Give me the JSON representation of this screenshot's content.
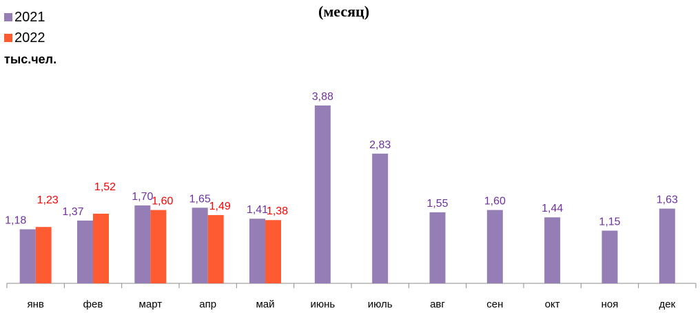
{
  "chart_data": {
    "type": "bar",
    "title": "(месяц)",
    "unit_label": "тыс.чел.",
    "categories": [
      "янв",
      "фев",
      "март",
      "апр",
      "май",
      "июнь",
      "июль",
      "авг",
      "сен",
      "окт",
      "ноя",
      "дек"
    ],
    "series": [
      {
        "name": "2021",
        "color": "#957DB5",
        "label_color": "#7030A0",
        "values": [
          1.18,
          1.37,
          1.7,
          1.65,
          1.41,
          3.88,
          2.83,
          1.55,
          1.6,
          1.44,
          1.15,
          1.63
        ],
        "labels": [
          "1,18",
          "1,37",
          "1,70",
          "1,65",
          "1,41",
          "3,88",
          "2,83",
          "1,55",
          "1,60",
          "1,44",
          "1,15",
          "1,63"
        ]
      },
      {
        "name": "2022",
        "color": "#FF5B32",
        "label_color": "#FF0000",
        "values": [
          1.23,
          1.52,
          1.6,
          1.49,
          1.38,
          null,
          null,
          null,
          null,
          null,
          null,
          null
        ],
        "labels": [
          "1,23",
          "1,52",
          "1,60",
          "1,49",
          "1,38",
          null,
          null,
          null,
          null,
          null,
          null,
          null
        ]
      }
    ],
    "ylim": [
      0,
      4.0
    ],
    "legend_position": "top-left",
    "grid": false
  }
}
